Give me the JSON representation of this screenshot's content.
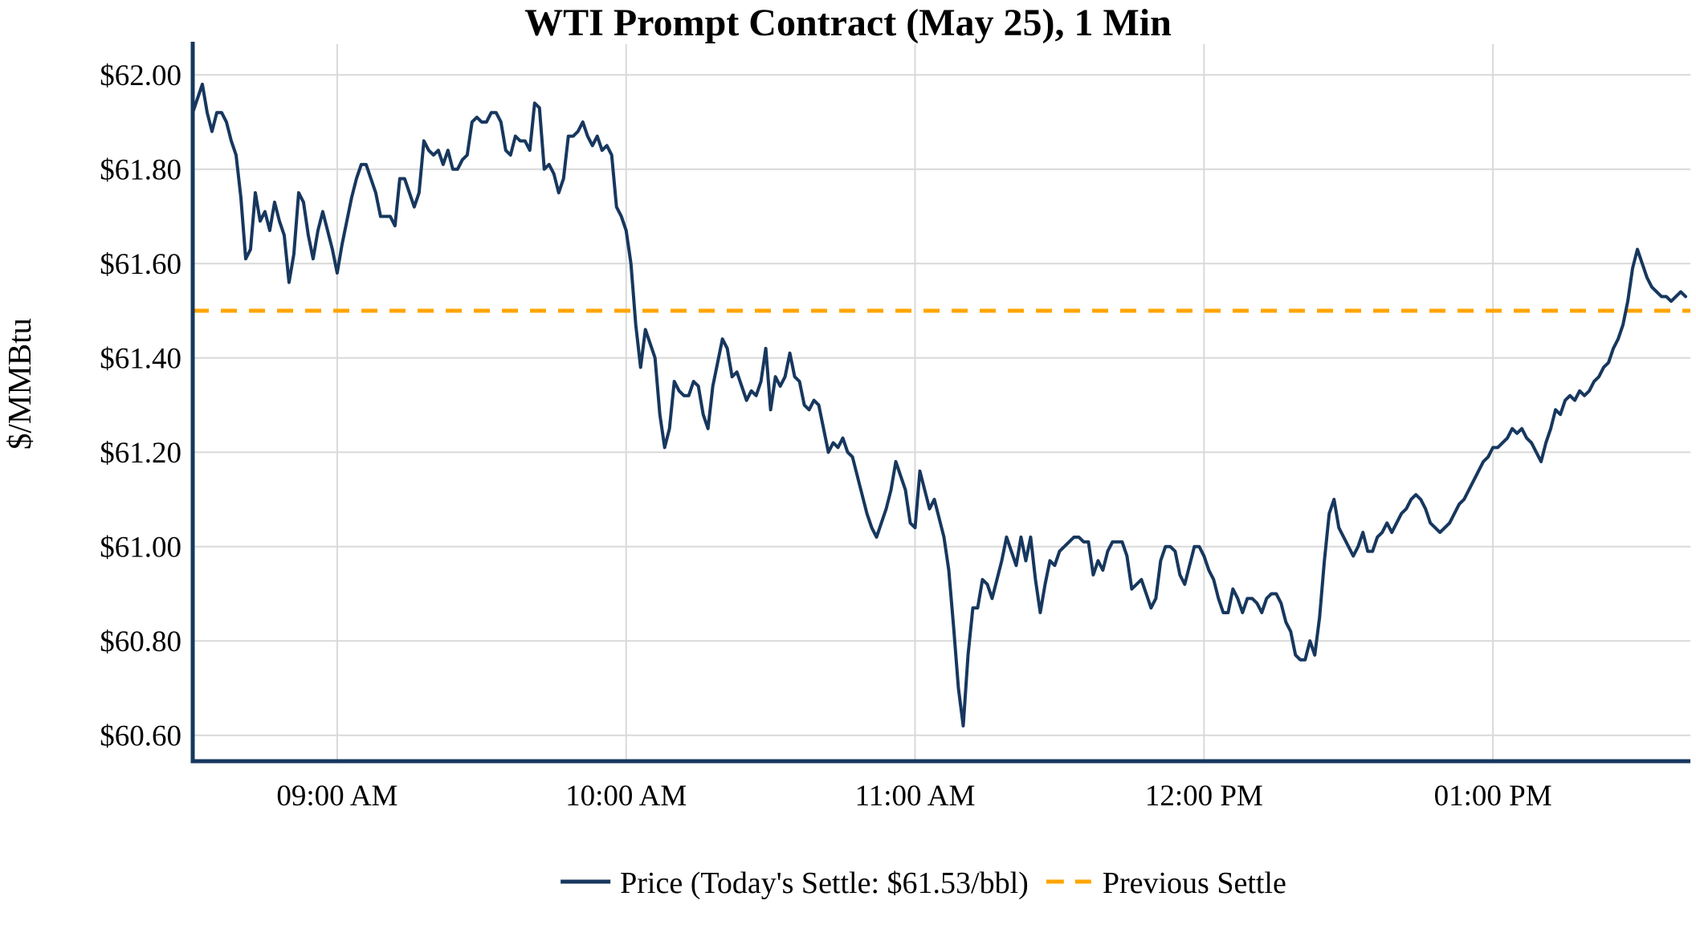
{
  "title": "WTI Prompt Contract (May 25), 1 Min",
  "colors": {
    "price_line": "#17375E",
    "previous_settle_line": "#FFA500",
    "gridline": "#D9D9D9",
    "axis_spine": "#17375E",
    "text": "#000000",
    "background": "#FFFFFF"
  },
  "chart_data": {
    "type": "line",
    "title": "WTI Prompt Contract (May 25), 1 Min",
    "xlabel": "",
    "ylabel": "$/MMBtu",
    "grid": true,
    "legend_position": "bottom-center",
    "ylim": [
      60.545,
      62.065
    ],
    "x_start": "08:30",
    "x_end": "13:41",
    "x_interval_minutes": 1,
    "y_ticks": [
      {
        "label": "$62.00",
        "value": 62.0
      },
      {
        "label": "$61.80",
        "value": 61.8
      },
      {
        "label": "$61.60",
        "value": 61.6
      },
      {
        "label": "$61.40",
        "value": 61.4
      },
      {
        "label": "$61.20",
        "value": 61.2
      },
      {
        "label": "$61.00",
        "value": 61.0
      },
      {
        "label": "$60.80",
        "value": 60.8
      },
      {
        "label": "$60.60",
        "value": 60.6
      }
    ],
    "x_ticks": [
      {
        "label": "09:00 AM",
        "time": "09:00"
      },
      {
        "label": "10:00 AM",
        "time": "10:00"
      },
      {
        "label": "11:00 AM",
        "time": "11:00"
      },
      {
        "label": "12:00 PM",
        "time": "12:00"
      },
      {
        "label": "01:00 PM",
        "time": "13:00"
      }
    ],
    "series": [
      {
        "name": "Price (Today's Settle: $61.53/bbl)",
        "type": "line",
        "style": "solid",
        "color": "#17375E",
        "today_settle": 61.53,
        "values": [
          61.92,
          61.95,
          61.98,
          61.92,
          61.88,
          61.92,
          61.92,
          61.9,
          61.86,
          61.83,
          61.74,
          61.61,
          61.63,
          61.75,
          61.69,
          61.71,
          61.67,
          61.73,
          61.69,
          61.66,
          61.56,
          61.62,
          61.75,
          61.73,
          61.66,
          61.61,
          61.67,
          61.71,
          61.67,
          61.63,
          61.58,
          61.64,
          61.69,
          61.74,
          61.78,
          61.81,
          61.81,
          61.78,
          61.75,
          61.7,
          61.7,
          61.7,
          61.68,
          61.78,
          61.78,
          61.75,
          61.72,
          61.75,
          61.86,
          61.84,
          61.83,
          61.84,
          61.81,
          61.84,
          61.8,
          61.8,
          61.82,
          61.83,
          61.9,
          61.91,
          61.9,
          61.9,
          61.92,
          61.92,
          61.9,
          61.84,
          61.83,
          61.87,
          61.86,
          61.86,
          61.84,
          61.94,
          61.93,
          61.8,
          61.81,
          61.79,
          61.75,
          61.78,
          61.87,
          61.87,
          61.88,
          61.9,
          61.87,
          61.85,
          61.87,
          61.84,
          61.85,
          61.83,
          61.72,
          61.7,
          61.67,
          61.6,
          61.47,
          61.38,
          61.46,
          61.43,
          61.4,
          61.28,
          61.21,
          61.25,
          61.35,
          61.33,
          61.32,
          61.32,
          61.35,
          61.34,
          61.28,
          61.25,
          61.34,
          61.39,
          61.44,
          61.42,
          61.36,
          61.37,
          61.34,
          61.31,
          61.33,
          61.32,
          61.35,
          61.42,
          61.29,
          61.36,
          61.34,
          61.36,
          61.41,
          61.36,
          61.35,
          61.3,
          61.29,
          61.31,
          61.3,
          61.25,
          61.2,
          61.22,
          61.21,
          61.23,
          61.2,
          61.19,
          61.15,
          61.11,
          61.07,
          61.04,
          61.02,
          61.05,
          61.08,
          61.12,
          61.18,
          61.15,
          61.12,
          61.05,
          61.04,
          61.16,
          61.12,
          61.08,
          61.1,
          61.06,
          61.02,
          60.95,
          60.83,
          60.7,
          60.62,
          60.77,
          60.87,
          60.87,
          60.93,
          60.92,
          60.89,
          60.93,
          60.97,
          61.02,
          60.99,
          60.96,
          61.02,
          60.97,
          61.02,
          60.93,
          60.86,
          60.92,
          60.97,
          60.96,
          60.99,
          61.0,
          61.01,
          61.02,
          61.02,
          61.01,
          61.01,
          60.94,
          60.97,
          60.95,
          60.99,
          61.01,
          61.01,
          61.01,
          60.98,
          60.91,
          60.92,
          60.93,
          60.9,
          60.87,
          60.89,
          60.97,
          61.0,
          61.0,
          60.99,
          60.94,
          60.92,
          60.96,
          61.0,
          61.0,
          60.98,
          60.95,
          60.93,
          60.89,
          60.86,
          60.86,
          60.91,
          60.89,
          60.86,
          60.89,
          60.89,
          60.88,
          60.86,
          60.89,
          60.9,
          60.9,
          60.88,
          60.84,
          60.82,
          60.77,
          60.76,
          60.76,
          60.8,
          60.77,
          60.85,
          60.97,
          61.07,
          61.1,
          61.04,
          61.02,
          61.0,
          60.98,
          61.0,
          61.03,
          60.99,
          60.99,
          61.02,
          61.03,
          61.05,
          61.03,
          61.05,
          61.07,
          61.08,
          61.1,
          61.11,
          61.1,
          61.08,
          61.05,
          61.04,
          61.03,
          61.04,
          61.05,
          61.07,
          61.09,
          61.1,
          61.12,
          61.14,
          61.16,
          61.18,
          61.19,
          61.21,
          61.21,
          61.22,
          61.23,
          61.25,
          61.24,
          61.25,
          61.23,
          61.22,
          61.2,
          61.18,
          61.22,
          61.25,
          61.29,
          61.28,
          61.31,
          61.32,
          61.31,
          61.33,
          61.32,
          61.33,
          61.35,
          61.36,
          61.38,
          61.39,
          61.42,
          61.44,
          61.47,
          61.52,
          61.59,
          61.63,
          61.6,
          61.57,
          61.55,
          61.54,
          61.53,
          61.53,
          61.52,
          61.53,
          61.54,
          61.53
        ]
      },
      {
        "name": "Previous Settle",
        "type": "hline",
        "style": "dashed",
        "color": "#FFA500",
        "value": 61.5
      }
    ]
  }
}
